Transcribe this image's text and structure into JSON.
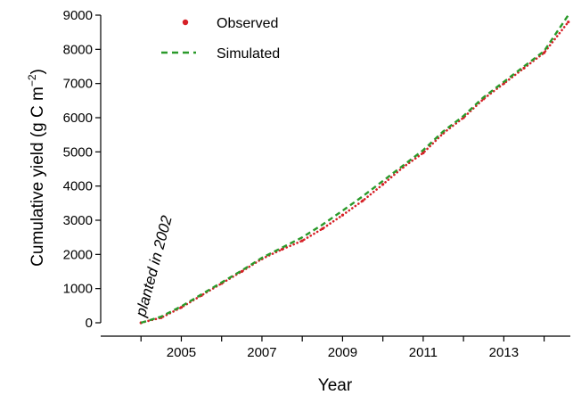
{
  "chart_data": {
    "type": "line",
    "xlabel": "Year",
    "ylabel": "Cumulative yield (g C m",
    "ylabel_sup": "−2",
    "ylabel_close": ")",
    "xlim": [
      2003.0,
      2014.65
    ],
    "ylim": [
      0,
      9000
    ],
    "x_ticks": [
      2004,
      2005,
      2006,
      2007,
      2008,
      2009,
      2010,
      2011,
      2012,
      2013,
      2014
    ],
    "x_tick_labels": [
      "2005",
      "2007",
      "2009",
      "2011",
      "2013"
    ],
    "x_tick_label_values": [
      2005,
      2007,
      2009,
      2011,
      2013
    ],
    "y_ticks": [
      0,
      1000,
      2000,
      3000,
      4000,
      5000,
      6000,
      7000,
      8000,
      9000
    ],
    "y_tick_labels": [
      "0",
      "1000",
      "2000",
      "3000",
      "4000",
      "5000",
      "6000",
      "7000",
      "8000",
      "9000"
    ],
    "grid": false,
    "legend_position": "top-left",
    "annotation": {
      "text": "planted in 2002",
      "x": 2004.5,
      "y": 0,
      "rotation": -75
    },
    "series": [
      {
        "name": "Observed",
        "style": "dotted",
        "color": "#d62027",
        "x": [
          2004.0,
          2004.5,
          2005.0,
          2005.5,
          2006.0,
          2006.5,
          2007.0,
          2007.5,
          2008.0,
          2008.5,
          2009.0,
          2009.5,
          2010.0,
          2010.5,
          2011.0,
          2011.5,
          2012.0,
          2012.5,
          2013.0,
          2013.5,
          2014.0,
          2014.6
        ],
        "y": [
          0,
          150,
          450,
          800,
          1150,
          1500,
          1870,
          2150,
          2400,
          2750,
          3150,
          3570,
          4050,
          4550,
          4970,
          5550,
          6000,
          6550,
          7000,
          7450,
          7900,
          8800
        ]
      },
      {
        "name": "Simulated",
        "style": "dashed",
        "color": "#2a9a2a",
        "x": [
          2004.0,
          2004.5,
          2005.0,
          2005.5,
          2006.0,
          2006.5,
          2007.0,
          2007.5,
          2008.0,
          2008.5,
          2009.0,
          2009.5,
          2010.0,
          2010.5,
          2011.0,
          2011.5,
          2012.0,
          2012.5,
          2013.0,
          2013.5,
          2014.0,
          2014.6
        ],
        "y": [
          0,
          180,
          480,
          830,
          1180,
          1530,
          1900,
          2200,
          2500,
          2870,
          3280,
          3700,
          4150,
          4600,
          5050,
          5600,
          6050,
          6600,
          7050,
          7500,
          7950,
          9000
        ]
      }
    ]
  }
}
